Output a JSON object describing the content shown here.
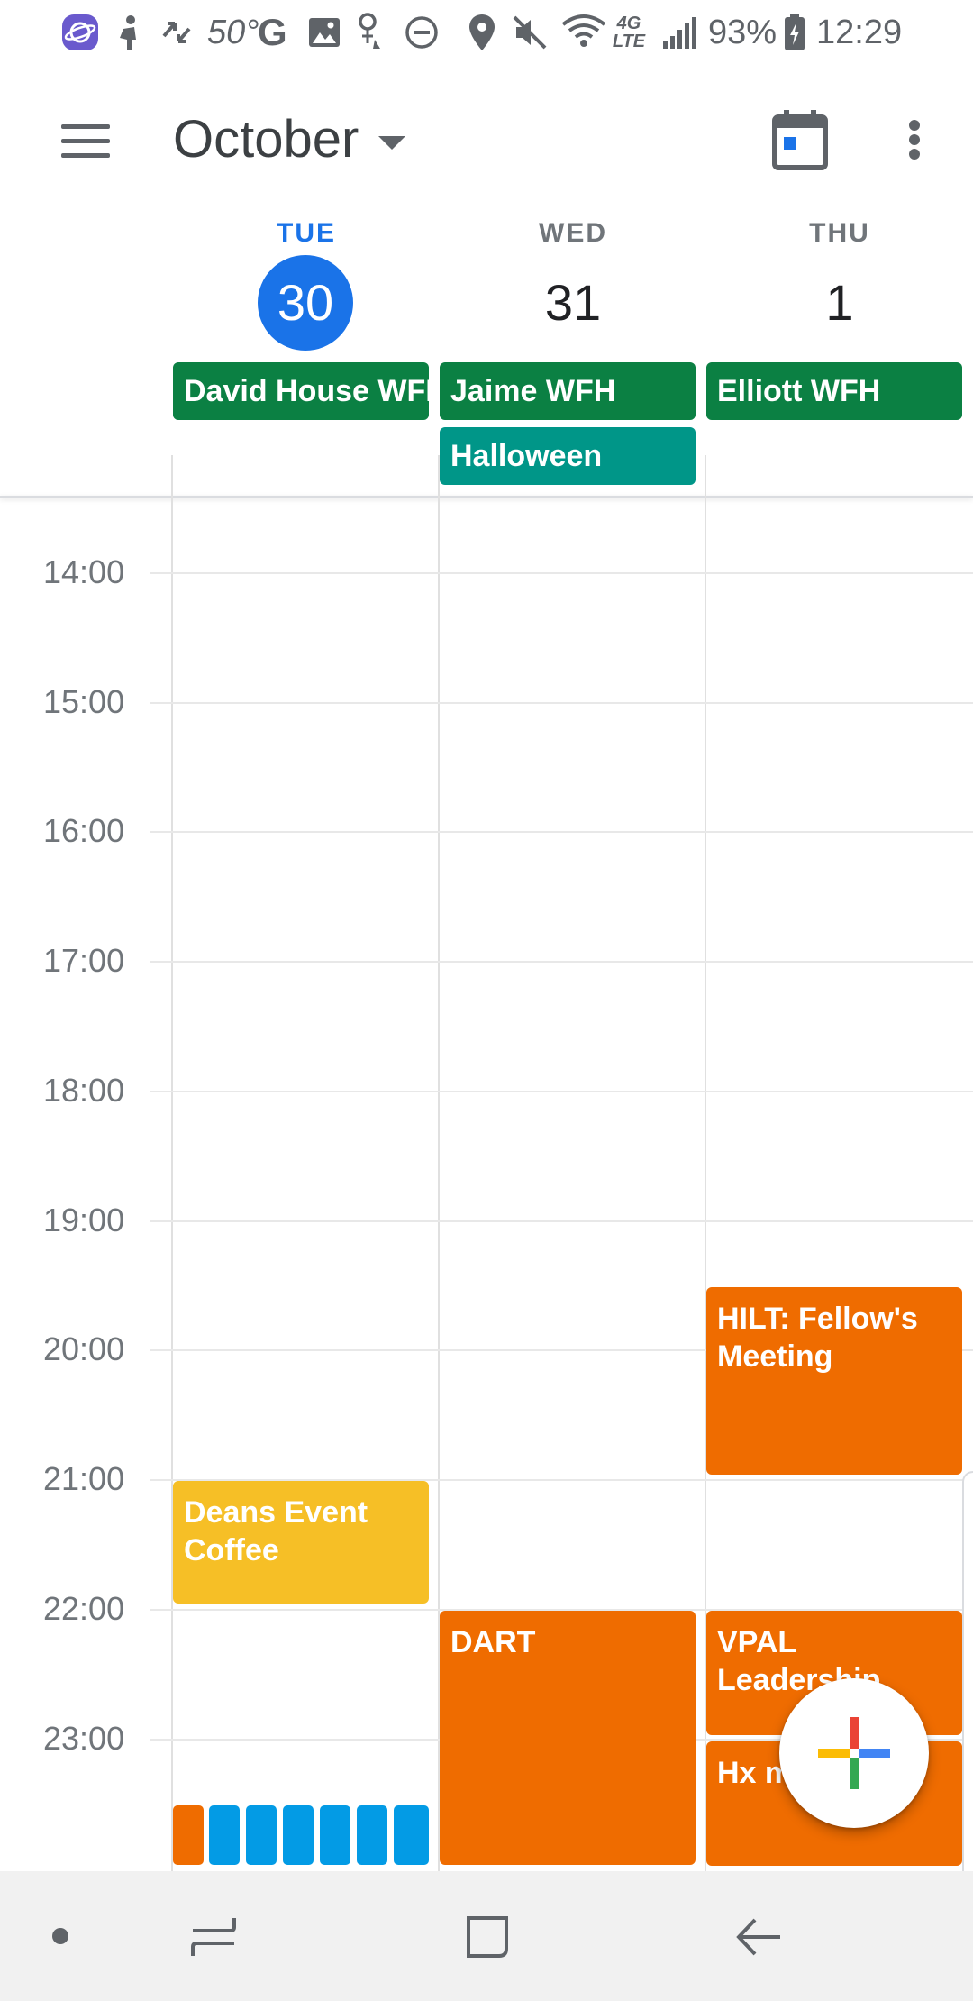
{
  "status_bar": {
    "temperature": "50°",
    "g_letter": "G",
    "network_type": "4G LTE",
    "battery": "93%",
    "time": "12:29",
    "icons": [
      "internet-icon",
      "person-icon",
      "sync-icon",
      "g-icon",
      "image-icon",
      "accessibility-icon",
      "dnd-icon",
      "location-icon",
      "mute-icon",
      "wifi-icon",
      "lte-icon",
      "signal-icon",
      "battery-icon"
    ]
  },
  "app_bar": {
    "month": "October",
    "icons": [
      "menu-icon",
      "dropdown-caret-icon",
      "calendar-today-icon",
      "more-vert-icon"
    ]
  },
  "days": [
    {
      "dow": "TUE",
      "date": "30",
      "is_today": true
    },
    {
      "dow": "WED",
      "date": "31",
      "is_today": false
    },
    {
      "dow": "THU",
      "date": "1",
      "is_today": false
    }
  ],
  "all_day_events": [
    {
      "day": "TUE",
      "title": "David House WFH",
      "color": "#0b8043"
    },
    {
      "day": "WED",
      "title": "Jaime WFH",
      "color": "#0b8043"
    },
    {
      "day": "THU",
      "title": "Elliott WFH",
      "color": "#0b8043"
    },
    {
      "day": "WED",
      "title": "Halloween",
      "color": "#009688"
    }
  ],
  "hours": [
    "14:00",
    "15:00",
    "16:00",
    "17:00",
    "18:00",
    "19:00",
    "20:00",
    "21:00",
    "22:00",
    "23:00"
  ],
  "events": [
    {
      "day": "THU",
      "title": "HILT: Fellow's Meeting",
      "color": "#ef6c00"
    },
    {
      "day": "TUE",
      "title": "Deans Event Coffee",
      "color": "#f6bf26"
    },
    {
      "day": "WED",
      "title": "DART",
      "color": "#ef6c00"
    },
    {
      "day": "THU",
      "title": "VPAL Leadership",
      "color": "#ef6c00"
    },
    {
      "day": "THU",
      "title": "Hx meeting",
      "color": "#ef6c00"
    }
  ],
  "colors": {
    "accent": "#1a73e8",
    "green": "#0b8043",
    "teal": "#009688",
    "orange": "#ef6c00",
    "yellow": "#f6bf26",
    "blue": "#039be5"
  },
  "fab": {
    "icon": "add-icon"
  },
  "nav_bar": {
    "icons": [
      "nav-dot-icon",
      "recent-apps-icon",
      "home-icon",
      "back-icon"
    ]
  }
}
